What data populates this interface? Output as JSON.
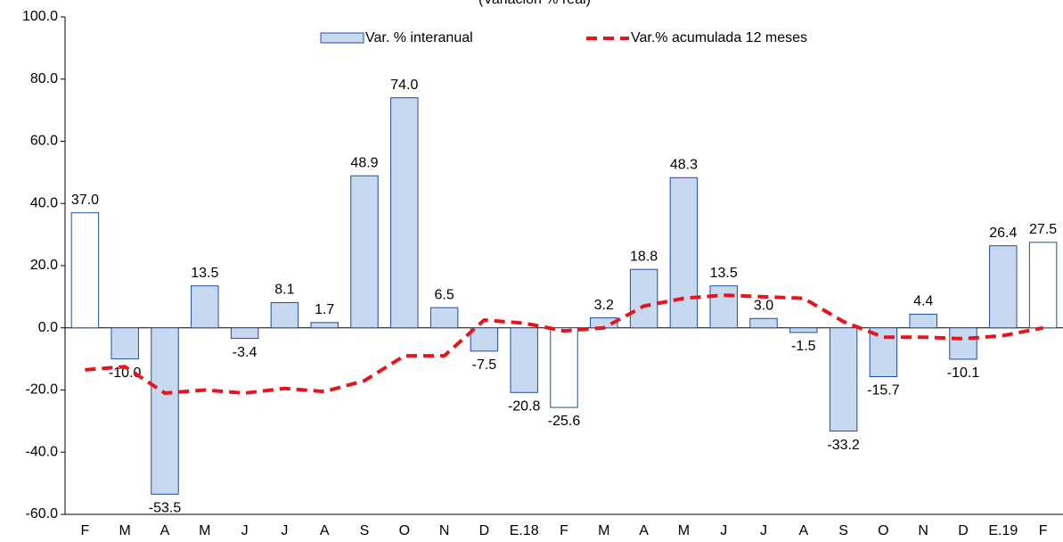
{
  "chart_data": {
    "type": "bar",
    "title": "(Variación % real)",
    "categories": [
      "F",
      "M",
      "A",
      "M",
      "J",
      "J",
      "A",
      "S",
      "O",
      "N",
      "D",
      "E.18",
      "F",
      "M",
      "A",
      "M",
      "J",
      "J",
      "A",
      "S",
      "O",
      "N",
      "D",
      "E.19",
      "F"
    ],
    "series": [
      {
        "name": "Var. % interanual",
        "type": "bar",
        "color": "#c6d9f1",
        "colors": [
          "#ffffff",
          "#c6d9f1",
          "#c6d9f1",
          "#c6d9f1",
          "#c6d9f1",
          "#c6d9f1",
          "#c6d9f1",
          "#c6d9f1",
          "#c6d9f1",
          "#c6d9f1",
          "#c6d9f1",
          "#c6d9f1",
          "#ffffff",
          "#c6d9f1",
          "#c6d9f1",
          "#c6d9f1",
          "#c6d9f1",
          "#c6d9f1",
          "#c6d9f1",
          "#c6d9f1",
          "#c6d9f1",
          "#c6d9f1",
          "#c6d9f1",
          "#c6d9f1",
          "#ffffff"
        ],
        "values": [
          37.0,
          -10.0,
          -53.5,
          13.5,
          -3.4,
          8.1,
          1.7,
          48.9,
          74.0,
          6.5,
          -7.5,
          -20.8,
          -25.6,
          3.2,
          18.8,
          48.3,
          13.5,
          3.0,
          -1.5,
          -33.2,
          -15.7,
          4.4,
          -10.1,
          26.4,
          27.5
        ],
        "value_labels": [
          "37.0",
          "-10.0",
          "-53.5",
          "13.5",
          "-3.4",
          "8.1",
          "1.7",
          "48.9",
          "74.0",
          "6.5",
          "-7.5",
          "-20.8",
          "-25.6",
          "3.2",
          "18.8",
          "48.3",
          "13.5",
          "3.0",
          "-1.5",
          "-33.2",
          "-15.7",
          "4.4",
          "-10.1",
          "26.4",
          "27.5"
        ]
      },
      {
        "name": "Var.% acumulada 12 meses",
        "type": "line",
        "color": "#e8141c",
        "values": [
          -13.5,
          -12.5,
          -21,
          -20,
          -21,
          -19.5,
          -20.5,
          -17,
          -9,
          -9,
          2.5,
          1.5,
          -1,
          0,
          7,
          9.5,
          10.5,
          10,
          9.5,
          2,
          -3,
          -3,
          -3.5,
          -2.5,
          0
        ]
      }
    ],
    "ylim": [
      -60,
      100
    ],
    "yticks": [
      {
        "value": -60,
        "label": "-60.0"
      },
      {
        "value": -40,
        "label": "-40.0"
      },
      {
        "value": -20,
        "label": "-20.0"
      },
      {
        "value": 0,
        "label": "0.0"
      },
      {
        "value": 20,
        "label": "20.0"
      },
      {
        "value": 40,
        "label": "40.0"
      },
      {
        "value": 60,
        "label": "60.0"
      },
      {
        "value": 80,
        "label": "80.0"
      },
      {
        "value": 100,
        "label": "100.0"
      }
    ]
  }
}
